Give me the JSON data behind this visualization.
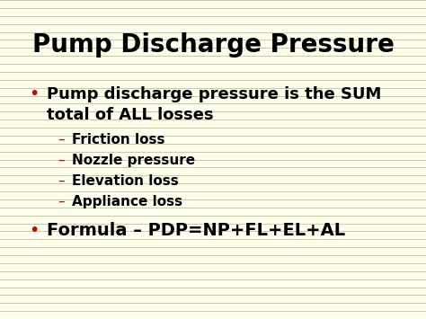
{
  "title": "Pump Discharge Pressure",
  "title_fontsize": 20,
  "title_fontweight": "bold",
  "title_color": "#000000",
  "background_color": "#FFFFF0",
  "line_color": "#CCCC99",
  "bullet_color": "#CC0000",
  "dash_color": "#CC0000",
  "text_color": "#000000",
  "bullet1_line1": "Pump discharge pressure is the SUM",
  "bullet1_line2": "total of ALL losses",
  "sub_items": [
    "Friction loss",
    "Nozzle pressure",
    "Elevation loss",
    "Appliance loss"
  ],
  "bullet2": "Formula – PDP=NP+FL+EL+AL",
  "figsize": [
    4.74,
    3.55
  ],
  "dpi": 100,
  "num_lines": 40,
  "bullet_fontsize": 13,
  "sub_fontsize": 11,
  "formula_fontsize": 14
}
